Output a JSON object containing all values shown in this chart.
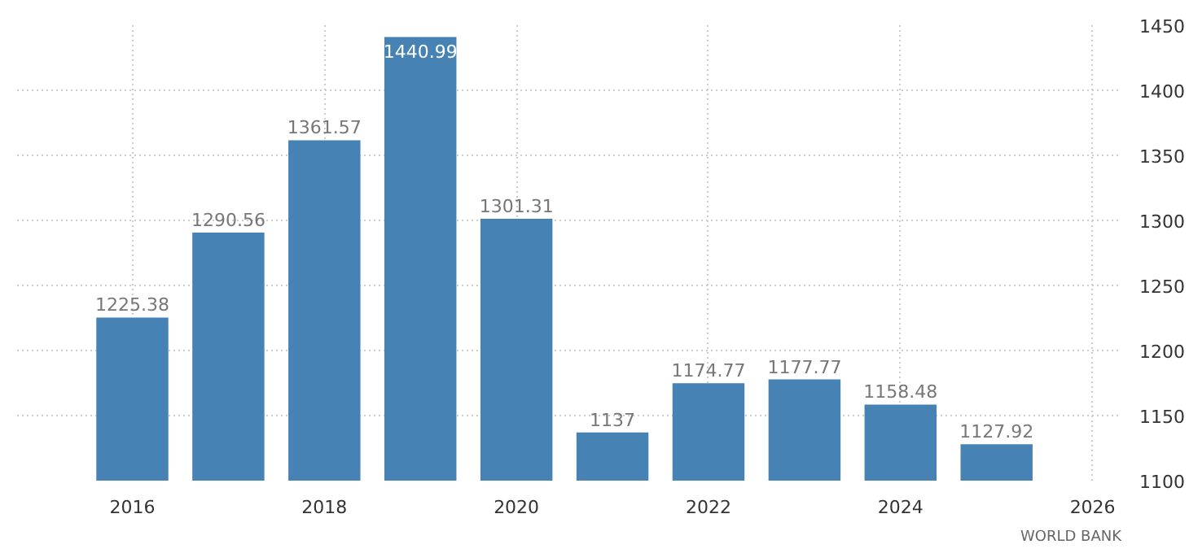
{
  "chart_data": {
    "type": "bar",
    "x": [
      2016,
      2017,
      2018,
      2019,
      2020,
      2021,
      2022,
      2023,
      2024,
      2025
    ],
    "values": [
      1225.38,
      1290.56,
      1361.57,
      1440.99,
      1301.31,
      1137,
      1174.77,
      1177.77,
      1158.48,
      1127.92
    ],
    "color": "#4682b4",
    "data_labels": true,
    "xlim": [
      2014.8,
      2026.3
    ],
    "xticks": [
      2016,
      2018,
      2020,
      2022,
      2024,
      2026
    ],
    "ylim": [
      1100,
      1450
    ],
    "yticks": [
      1100,
      1150,
      1200,
      1250,
      1300,
      1350,
      1400,
      1450
    ],
    "grid": true,
    "annotations": [
      "WORLD BANK"
    ]
  }
}
